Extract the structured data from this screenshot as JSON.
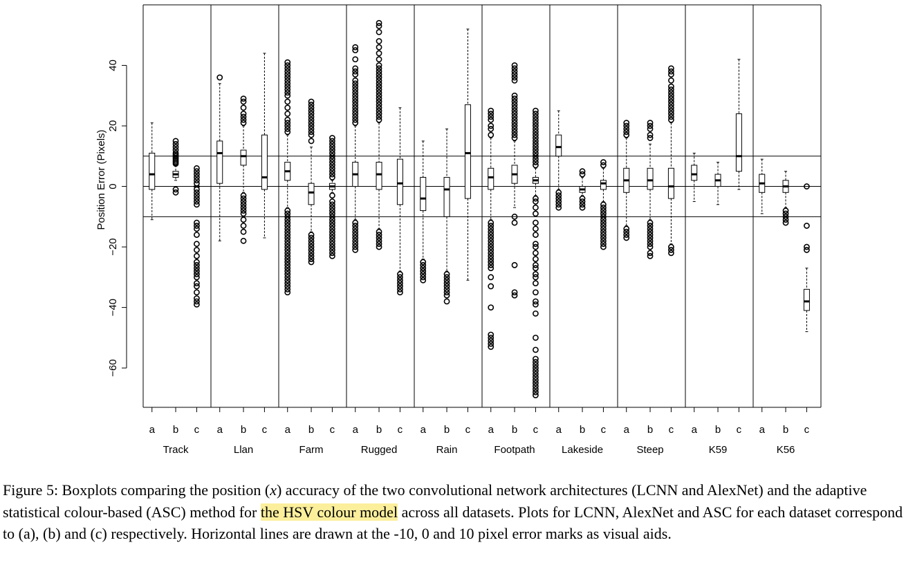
{
  "chart_data": {
    "type": "boxplot",
    "ylabel": "Position Error (Pixels)",
    "xlabel": "",
    "ylim": [
      -73,
      60
    ],
    "yticks": [
      -60,
      -40,
      -20,
      0,
      20,
      40
    ],
    "reference_lines": [
      -10,
      0,
      10
    ],
    "method_labels": [
      "a",
      "b",
      "c"
    ],
    "datasets": [
      {
        "name": "Track",
        "boxes": [
          {
            "min": -11,
            "q1": -1,
            "median": 4,
            "q3": 11,
            "max": 21,
            "outliers": []
          },
          {
            "min": 2,
            "q1": 3,
            "median": 4,
            "q3": 5,
            "max": 7,
            "outliers": [
              7.5,
              8,
              8.5,
              9,
              9.5,
              10,
              10.5,
              11,
              12,
              13,
              14,
              15,
              -1,
              -2
            ]
          },
          {
            "min": 0,
            "q1": 0,
            "median": 0,
            "q3": 0,
            "max": 0,
            "outliers": [
              6,
              5,
              4,
              3,
              2,
              1,
              -1,
              -2,
              -3,
              -4,
              -5,
              -6,
              -12,
              -13,
              -14,
              -16,
              -19,
              -21,
              -23,
              -25,
              -26,
              -27,
              -28,
              -29,
              -30,
              -32,
              -33,
              -35,
              -37,
              -38,
              -39
            ]
          }
        ]
      },
      {
        "name": "Llan",
        "boxes": [
          {
            "min": -18,
            "q1": 1,
            "median": 11,
            "q3": 15,
            "max": 34,
            "outliers": [
              36
            ]
          },
          {
            "min": -2,
            "q1": 7,
            "median": 10,
            "q3": 12,
            "max": 20,
            "outliers": [
              21,
              22,
              23,
              24,
              26,
              28,
              29,
              -3,
              -4,
              -5,
              -6,
              -7,
              -8,
              -9,
              -11,
              -13,
              -15,
              -18
            ]
          },
          {
            "min": -17,
            "q1": -1,
            "median": 3,
            "q3": 17,
            "max": 44,
            "outliers": []
          }
        ]
      },
      {
        "name": "Farm",
        "boxes": [
          {
            "min": -7,
            "q1": 2,
            "median": 5,
            "q3": 8,
            "max": 17,
            "outliers": [
              18,
              19,
              20,
              21,
              22,
              24,
              26,
              28,
              30,
              31,
              32,
              33,
              34,
              35,
              36,
              37,
              38,
              39,
              40,
              41,
              -8,
              -9,
              -10,
              -11,
              -12,
              -13,
              -14,
              -15,
              -16,
              -17,
              -18,
              -19,
              -20,
              -21,
              -22,
              -23,
              -24,
              -25,
              -26,
              -27,
              -28,
              -29,
              -30,
              -31,
              -32,
              -33,
              -34,
              -35
            ]
          },
          {
            "min": -15,
            "q1": -6,
            "median": -2,
            "q3": 1,
            "max": 13,
            "outliers": [
              15,
              17,
              18,
              19,
              20,
              21,
              22,
              23,
              24,
              25,
              26,
              27,
              28,
              -16,
              -17,
              -18,
              -19,
              -20,
              -21,
              -22,
              -23,
              -24,
              -25
            ]
          },
          {
            "min": -2,
            "q1": -1,
            "median": 0,
            "q3": 1,
            "max": 2,
            "outliers": [
              3,
              4,
              5,
              6,
              7,
              8,
              9,
              10,
              11,
              12,
              13,
              14,
              15,
              16,
              -3,
              -5,
              -6,
              -7,
              -8,
              -9,
              -10,
              -11,
              -12,
              -13,
              -14,
              -15,
              -16,
              -17,
              -18,
              -19,
              -20,
              -21,
              -22,
              -23
            ]
          }
        ]
      },
      {
        "name": "Rugged",
        "boxes": [
          {
            "min": -11,
            "q1": 0,
            "median": 4,
            "q3": 8,
            "max": 20,
            "outliers": [
              21,
              22,
              23,
              24,
              25,
              26,
              27,
              28,
              29,
              30,
              31,
              32,
              33,
              34,
              35,
              37,
              38,
              39,
              42,
              45,
              46,
              -12,
              -13,
              -14,
              -15,
              -16,
              -17,
              -18,
              -19,
              -20,
              -21
            ]
          },
          {
            "min": -14,
            "q1": -1,
            "median": 4,
            "q3": 8,
            "max": 21,
            "outliers": [
              22,
              23,
              24,
              25,
              26,
              27,
              28,
              29,
              30,
              31,
              32,
              33,
              34,
              35,
              36,
              37,
              38,
              39,
              40,
              42,
              44,
              46,
              48,
              51,
              53,
              54,
              -15,
              -16,
              -17,
              -18,
              -19,
              -20
            ]
          },
          {
            "min": -28,
            "q1": -6,
            "median": 1,
            "q3": 9,
            "max": 26,
            "outliers": [
              -29,
              -30,
              -31,
              -32,
              -33,
              -34,
              -35
            ]
          }
        ]
      },
      {
        "name": "Rain",
        "boxes": [
          {
            "min": -24,
            "q1": -8,
            "median": -4,
            "q3": 3,
            "max": 15,
            "outliers": [
              -25,
              -26,
              -27,
              -28,
              -29,
              -30,
              -31
            ]
          },
          {
            "min": -28,
            "q1": -10,
            "median": -1,
            "q3": 3,
            "max": 19,
            "outliers": [
              -29,
              -30,
              -31,
              -32,
              -33,
              -34,
              -35,
              -36,
              -38
            ]
          },
          {
            "min": -31,
            "q1": -4,
            "median": 11,
            "q3": 27,
            "max": 52,
            "outliers": []
          }
        ]
      },
      {
        "name": "Footpath",
        "boxes": [
          {
            "min": -11,
            "q1": -1,
            "median": 3,
            "q3": 6,
            "max": 16,
            "outliers": [
              17,
              19,
              20,
              22,
              23,
              24,
              25,
              -12,
              -13,
              -14,
              -15,
              -16,
              -17,
              -18,
              -19,
              -20,
              -21,
              -22,
              -23,
              -24,
              -25,
              -26,
              -27,
              -30,
              -33,
              -40,
              -49,
              -50,
              -51,
              -52,
              -53
            ]
          },
          {
            "min": -7,
            "q1": 1,
            "median": 4,
            "q3": 7,
            "max": 15,
            "outliers": [
              16,
              17,
              18,
              19,
              20,
              21,
              22,
              23,
              24,
              25,
              26,
              27,
              28,
              29,
              30,
              35,
              36,
              37,
              38,
              39,
              40,
              -10,
              -12,
              -26,
              -35,
              -36
            ]
          },
          {
            "min": -3,
            "q1": 1,
            "median": 2,
            "q3": 3,
            "max": 6,
            "outliers": [
              7,
              8,
              9,
              10,
              11,
              12,
              13,
              14,
              15,
              16,
              17,
              18,
              19,
              20,
              21,
              22,
              23,
              24,
              25,
              -4,
              -5,
              -7,
              -9,
              -12,
              -14,
              -16,
              -19,
              -20,
              -22,
              -24,
              -26,
              -27,
              -29,
              -30,
              -32,
              -35,
              -38,
              -39,
              -42,
              -50,
              -54,
              -57,
              -58,
              -59,
              -60,
              -61,
              -62,
              -63,
              -64,
              -65,
              -66,
              -67,
              -68,
              -69
            ]
          }
        ]
      },
      {
        "name": "Lakeside",
        "boxes": [
          {
            "min": -1,
            "q1": 10,
            "median": 13,
            "q3": 17,
            "max": 25,
            "outliers": [
              -2,
              -3,
              -4,
              -5,
              -6,
              -7
            ]
          },
          {
            "min": -3,
            "q1": -2,
            "median": -1,
            "q3": 0,
            "max": 3,
            "outliers": [
              4,
              5,
              -4,
              -5,
              -6,
              -7
            ]
          },
          {
            "min": -5,
            "q1": -1,
            "median": 1,
            "q3": 2,
            "max": 6,
            "outliers": [
              7,
              8,
              -6,
              -7,
              -8,
              -9,
              -10,
              -11,
              -12,
              -13,
              -14,
              -15,
              -16,
              -17,
              -18,
              -19,
              -20
            ]
          }
        ]
      },
      {
        "name": "Steep",
        "boxes": [
          {
            "min": -13,
            "q1": -2,
            "median": 2,
            "q3": 6,
            "max": 16,
            "outliers": [
              17,
              18,
              19,
              20,
              21,
              -14,
              -15,
              -16,
              -17
            ]
          },
          {
            "min": -11,
            "q1": -1,
            "median": 2,
            "q3": 6,
            "max": 14,
            "outliers": [
              16,
              17,
              19,
              20,
              21,
              -12,
              -13,
              -14,
              -15,
              -16,
              -17,
              -18,
              -19,
              -20,
              -22,
              -23
            ]
          },
          {
            "min": -19,
            "q1": -4,
            "median": 0,
            "q3": 6,
            "max": 21,
            "outliers": [
              22,
              23,
              24,
              25,
              26,
              27,
              28,
              29,
              30,
              31,
              32,
              33,
              35,
              37,
              38,
              39,
              -20,
              -21,
              -22
            ]
          }
        ]
      },
      {
        "name": "K59",
        "boxes": [
          {
            "min": -5,
            "q1": 2,
            "median": 4,
            "q3": 7,
            "max": 11,
            "outliers": []
          },
          {
            "min": -6,
            "q1": 0,
            "median": 2,
            "q3": 4,
            "max": 8,
            "outliers": []
          },
          {
            "min": -1,
            "q1": 5,
            "median": 10,
            "q3": 24,
            "max": 42,
            "outliers": []
          }
        ]
      },
      {
        "name": "K56",
        "boxes": [
          {
            "min": -9,
            "q1": -2,
            "median": 1,
            "q3": 4,
            "max": 9,
            "outliers": []
          },
          {
            "min": -7,
            "q1": -2,
            "median": 0,
            "q3": 2,
            "max": 5,
            "outliers": [
              -8,
              -9,
              -10,
              -11,
              -12
            ]
          },
          {
            "min": -48,
            "q1": -41,
            "median": -38,
            "q3": -34,
            "max": -27,
            "outliers": [
              0,
              -13,
              -20,
              -21
            ]
          }
        ]
      }
    ]
  },
  "caption": {
    "pre": "Figure 5: Boxplots comparing the position (",
    "var": "x",
    "mid": ") accuracy of the two convolutional network architectures (LCNN and AlexNet) and the adaptive statistical colour-based (ASC) method for ",
    "highlight": "the HSV colour model",
    "post": " across all datasets. Plots for LCNN, AlexNet and ASC for each dataset correspond to (a), (b) and (c) respectively. Horizontal lines are drawn at the -10, 0 and 10 pixel error marks as visual aids."
  }
}
